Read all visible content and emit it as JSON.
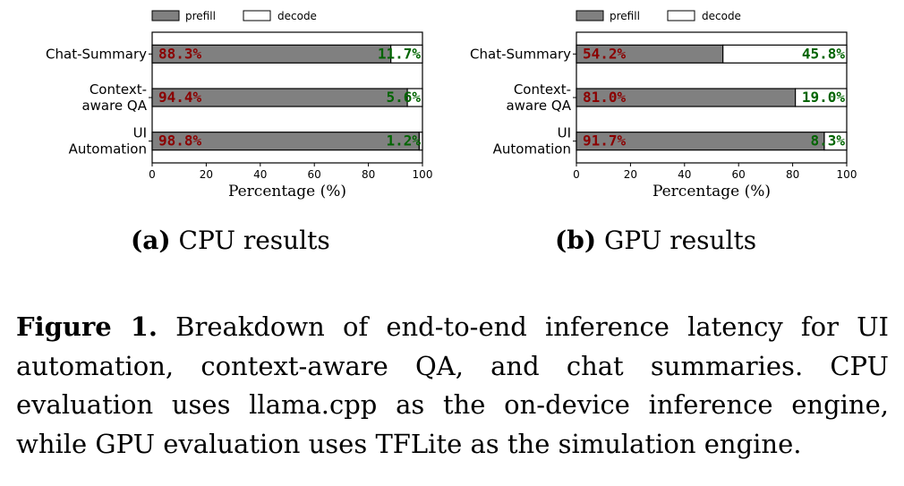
{
  "chart_data": [
    {
      "type": "bar",
      "orientation": "horizontal",
      "stacked": true,
      "panel_label": "(a)",
      "title": "CPU results",
      "xlabel": "Percentage (%)",
      "ylabel": "",
      "xlim": [
        0,
        100
      ],
      "xticks": [
        "0",
        "20",
        "40",
        "60",
        "80",
        "100"
      ],
      "categories": [
        [
          "Chat-Summary"
        ],
        [
          "Context-",
          "aware QA"
        ],
        [
          "UI",
          "Automation"
        ]
      ],
      "series": [
        {
          "name": "prefill",
          "color": "#808080",
          "values": [
            88.3,
            94.4,
            98.8
          ],
          "labels": [
            "88.3%",
            "94.4%",
            "98.8%"
          ]
        },
        {
          "name": "decode",
          "color": "#ffffff",
          "values": [
            11.7,
            5.6,
            1.2
          ],
          "labels": [
            "11.7%",
            "5.6%",
            "1.2%"
          ]
        }
      ],
      "legend": "top",
      "grid": false
    },
    {
      "type": "bar",
      "orientation": "horizontal",
      "stacked": true,
      "panel_label": "(b)",
      "title": "GPU results",
      "xlabel": "Percentage (%)",
      "ylabel": "",
      "xlim": [
        0,
        100
      ],
      "xticks": [
        "0",
        "20",
        "40",
        "60",
        "80",
        "100"
      ],
      "categories": [
        [
          "Chat-Summary"
        ],
        [
          "Context-",
          "aware QA"
        ],
        [
          "UI",
          "Automation"
        ]
      ],
      "series": [
        {
          "name": "prefill",
          "color": "#808080",
          "values": [
            54.2,
            81.0,
            91.7
          ],
          "labels": [
            "54.2%",
            "81.0%",
            "91.7%"
          ]
        },
        {
          "name": "decode",
          "color": "#ffffff",
          "values": [
            45.8,
            19.0,
            8.3
          ],
          "labels": [
            "45.8%",
            "19.0%",
            "8.3%"
          ]
        }
      ],
      "legend": "top",
      "grid": false
    }
  ],
  "figure": {
    "label": "Figure 1.",
    "caption": "Breakdown of end-to-end inference latency for UI automation, context-aware QA, and chat summaries. CPU evaluation uses llama.cpp as the on-device inference engine, while GPU evaluation uses TFLite as the simulation engine."
  }
}
